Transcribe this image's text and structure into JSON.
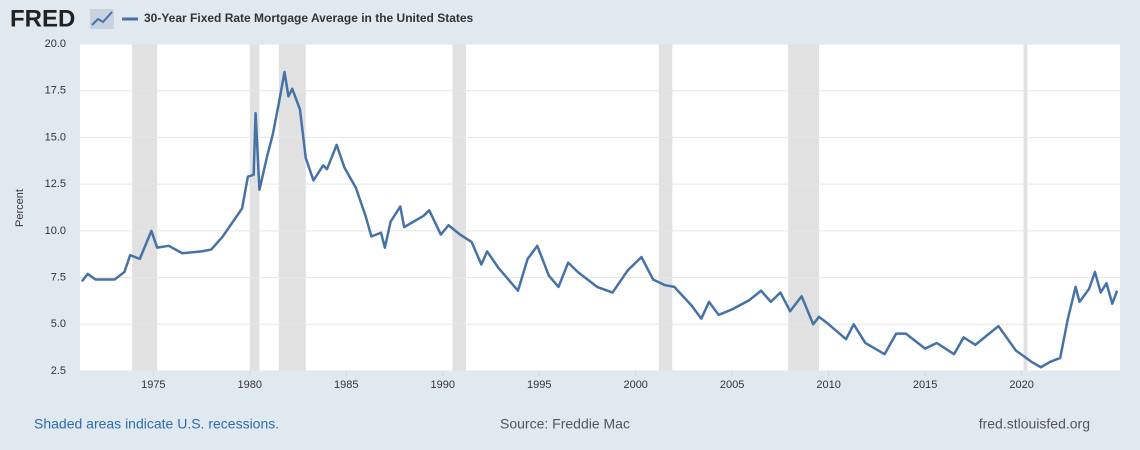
{
  "chart_data": {
    "type": "line",
    "logo": "FRED",
    "title": "30-Year Fixed Rate Mortgage Average in the United States",
    "y_label": "Percent",
    "note": "Shaded areas indicate U.S. recessions.",
    "source": "Source: Freddie Mac",
    "site": "fred.stlouisfed.org",
    "xlim": [
      1971.2,
      2025.1
    ],
    "xticks": [
      1975,
      1980,
      1985,
      1990,
      1995,
      2000,
      2005,
      2010,
      2015,
      2020
    ],
    "ylim": [
      2.5,
      20
    ],
    "yticks": [
      2.5,
      {
        "value": 5,
        "label": "5.0"
      },
      7.5,
      {
        "value": 10,
        "label": "10.0"
      },
      12.5,
      {
        "value": 15,
        "label": "15.0"
      },
      17.5,
      {
        "value": 20,
        "label": "20.0"
      }
    ],
    "grid": true,
    "recessions": [
      [
        1973.9,
        1975.2
      ],
      [
        1980.0,
        1980.5
      ],
      [
        1981.5,
        1982.9
      ],
      [
        1990.5,
        1991.2
      ],
      [
        2001.2,
        2001.9
      ],
      [
        2007.9,
        2009.5
      ],
      [
        2020.1,
        2020.3
      ]
    ],
    "recession_color": "#e1e1e1",
    "x": [
      1971.3,
      1971.6,
      1972.0,
      1973.0,
      1973.5,
      1973.8,
      1974.3,
      1974.7,
      1974.9,
      1975.2,
      1975.8,
      1976.5,
      1977.5,
      1978.0,
      1978.6,
      1979.0,
      1979.6,
      1979.9,
      1980.2,
      1980.3,
      1980.5,
      1980.9,
      1981.2,
      1981.5,
      1981.8,
      1982.0,
      1982.2,
      1982.6,
      1982.9,
      1983.3,
      1983.8,
      1984.0,
      1984.5,
      1984.9,
      1985.5,
      1986.0,
      1986.3,
      1986.8,
      1987.0,
      1987.3,
      1987.8,
      1988.0,
      1988.5,
      1989.0,
      1989.3,
      1989.9,
      1990.3,
      1990.9,
      1991.5,
      1992.0,
      1992.3,
      1992.9,
      1993.9,
      1994.4,
      1994.9,
      1995.5,
      1996.0,
      1996.5,
      1997.0,
      1998.0,
      1998.8,
      1999.6,
      2000.3,
      2000.9,
      2001.5,
      2002.0,
      2002.9,
      2003.4,
      2003.8,
      2004.3,
      2005.0,
      2005.9,
      2006.5,
      2007.0,
      2007.5,
      2008.0,
      2008.6,
      2009.2,
      2009.5,
      2010.0,
      2010.9,
      2011.3,
      2011.9,
      2012.9,
      2013.5,
      2014.0,
      2015.0,
      2015.6,
      2016.5,
      2017.0,
      2017.6,
      2018.8,
      2019.7,
      2020.5,
      2021.0,
      2021.5,
      2022.0,
      2022.4,
      2022.8,
      2023.0,
      2023.5,
      2023.8,
      2024.1,
      2024.4,
      2024.7,
      2024.95
    ],
    "series": [
      {
        "name": "30-Year Fixed Rate Mortgage Average in the United States",
        "color": "#4572a7",
        "values": [
          7.3,
          7.7,
          7.4,
          7.4,
          7.8,
          8.7,
          8.5,
          9.5,
          10.0,
          9.1,
          9.2,
          8.8,
          8.9,
          9.0,
          9.7,
          10.3,
          11.2,
          12.9,
          13.0,
          16.3,
          12.2,
          14.0,
          15.2,
          16.8,
          18.5,
          17.2,
          17.6,
          16.5,
          13.9,
          12.7,
          13.5,
          13.3,
          14.6,
          13.4,
          12.3,
          10.8,
          9.7,
          9.9,
          9.1,
          10.5,
          11.3,
          10.2,
          10.5,
          10.8,
          11.1,
          9.8,
          10.3,
          9.8,
          9.4,
          8.2,
          8.9,
          8.0,
          6.8,
          8.5,
          9.2,
          7.6,
          7.0,
          8.3,
          7.8,
          7.0,
          6.7,
          7.9,
          8.6,
          7.4,
          7.1,
          7.0,
          6.0,
          5.3,
          6.2,
          5.5,
          5.8,
          6.3,
          6.8,
          6.2,
          6.7,
          5.7,
          6.5,
          5.0,
          5.4,
          5.0,
          4.2,
          5.0,
          4.0,
          3.4,
          4.5,
          4.5,
          3.7,
          4.0,
          3.4,
          4.3,
          3.9,
          4.9,
          3.6,
          3.0,
          2.7,
          3.0,
          3.2,
          5.3,
          7.0,
          6.2,
          6.9,
          7.8,
          6.7,
          7.2,
          6.1,
          6.8
        ]
      }
    ]
  }
}
